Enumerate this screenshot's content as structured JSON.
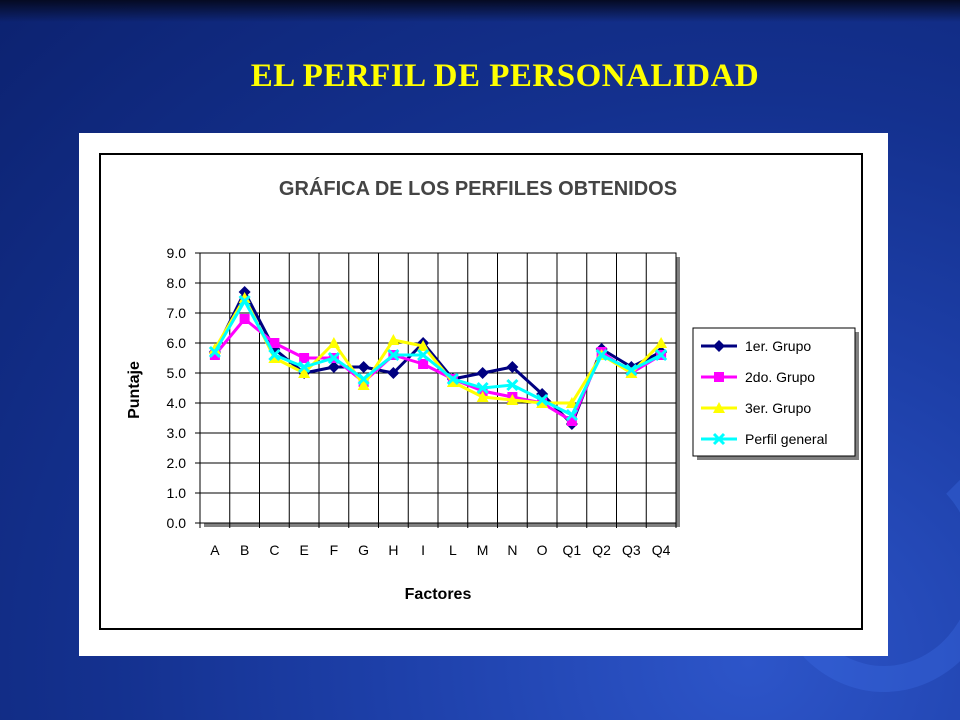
{
  "slide": {
    "title": "EL PERFIL DE PERSONALIDAD"
  },
  "chart_data": {
    "type": "line",
    "title": "GRÁFICA DE LOS PERFILES OBTENIDOS",
    "xlabel": "Factores",
    "ylabel": "Puntaje",
    "ylim": [
      0,
      9
    ],
    "yticks": [
      "0.0",
      "1.0",
      "2.0",
      "3.0",
      "4.0",
      "5.0",
      "6.0",
      "7.0",
      "8.0",
      "9.0"
    ],
    "grid": true,
    "legend_position": "right",
    "categories": [
      "A",
      "B",
      "C",
      "E",
      "F",
      "G",
      "H",
      "I",
      "L",
      "M",
      "N",
      "O",
      "Q1",
      "Q2",
      "Q3",
      "Q4"
    ],
    "series": [
      {
        "name": "1er. Grupo",
        "color": "#000080",
        "marker": "diamond",
        "values": [
          5.7,
          7.7,
          5.8,
          5.0,
          5.2,
          5.2,
          5.0,
          6.0,
          4.8,
          5.0,
          5.2,
          4.3,
          3.3,
          5.8,
          5.2,
          5.7
        ]
      },
      {
        "name": "2do. Grupo",
        "color": "#ff00ff",
        "marker": "square",
        "values": [
          5.6,
          6.8,
          6.0,
          5.5,
          5.5,
          4.7,
          5.6,
          5.3,
          4.8,
          4.4,
          4.2,
          4.0,
          3.4,
          5.7,
          5.0,
          5.6
        ]
      },
      {
        "name": "3er. Grupo",
        "color": "#ffff00",
        "marker": "triangle",
        "values": [
          5.8,
          7.5,
          5.5,
          5.0,
          6.0,
          4.6,
          6.1,
          5.9,
          4.7,
          4.2,
          4.1,
          4.0,
          4.0,
          5.6,
          5.0,
          6.0
        ]
      },
      {
        "name": "Perfil general",
        "color": "#00ffff",
        "marker": "x",
        "values": [
          5.7,
          7.4,
          5.6,
          5.2,
          5.5,
          4.8,
          5.6,
          5.6,
          4.8,
          4.5,
          4.6,
          4.1,
          3.6,
          5.6,
          5.1,
          5.6
        ]
      }
    ]
  }
}
